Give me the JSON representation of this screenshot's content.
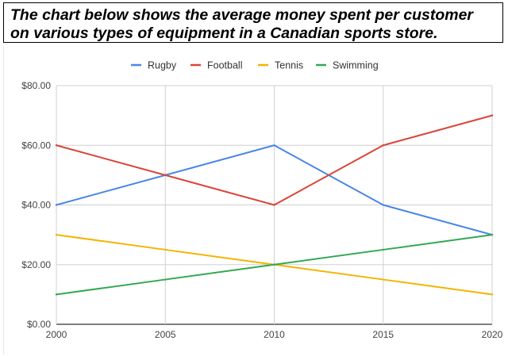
{
  "title": {
    "line1": "The chart below shows the average money spent per customer",
    "line2": "on various types of equipment in a Canadian sports store."
  },
  "chart_data": {
    "type": "line",
    "x": [
      2000,
      2005,
      2010,
      2015,
      2020
    ],
    "x_tick_labels": [
      "2000",
      "2005",
      "2010",
      "2015",
      "2020"
    ],
    "y_tick_labels": [
      "$0.00",
      "$20.00",
      "$40.00",
      "$60.00",
      "$80.00"
    ],
    "y_ticks": [
      0,
      20,
      40,
      60,
      80
    ],
    "ylim": [
      0,
      80
    ],
    "xlim": [
      2000,
      2020
    ],
    "grid": true,
    "legend_position": "top-center",
    "series": [
      {
        "name": "Rugby",
        "color": "#4a86e8",
        "values": [
          40,
          50,
          60,
          40,
          30
        ]
      },
      {
        "name": "Football",
        "color": "#db4437",
        "values": [
          60,
          50,
          40,
          60,
          70
        ]
      },
      {
        "name": "Tennis",
        "color": "#f4b400",
        "values": [
          30,
          25,
          20,
          15,
          10
        ]
      },
      {
        "name": "Swimming",
        "color": "#34a853",
        "values": [
          10,
          15,
          20,
          25,
          30
        ]
      }
    ]
  }
}
